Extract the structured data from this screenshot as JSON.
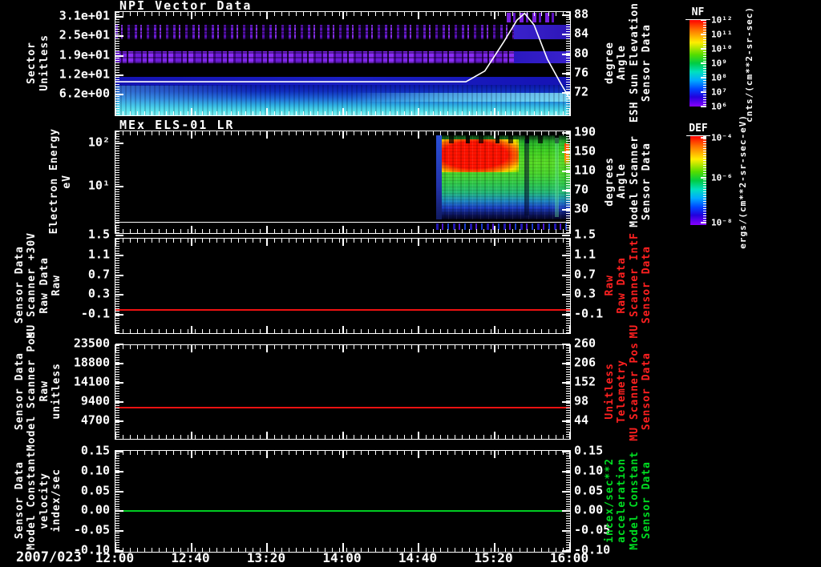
{
  "figure": {
    "bg": "#000000",
    "date_label": "2007/023",
    "x_ticks": [
      "12:00",
      "12:40",
      "13:20",
      "14:00",
      "14:40",
      "15:20",
      "16:00"
    ],
    "panels": [
      {
        "id": "npi",
        "title": "NPI Vector Data",
        "left_label_lines": [
          "Sector",
          "Unitless"
        ],
        "left_ticks": [
          "3.1e+01",
          "2.5e+01",
          "1.9e+01",
          "1.2e+01",
          "6.2e+00"
        ],
        "right_ticks": [
          "88",
          "84",
          "80",
          "76",
          "72"
        ],
        "right_label_lines": [
          "Sensor Data",
          "ESH Sun Elevation",
          "Angle",
          "degree"
        ],
        "right_label_color": "#ffffff"
      },
      {
        "id": "els",
        "title": "MEx ELS-01 LR",
        "left_label_lines": [
          "Electron Energy",
          "eV"
        ],
        "left_ticks": [
          "10²",
          "10¹"
        ],
        "right_ticks": [
          "190",
          "150",
          "110",
          "70",
          "30"
        ],
        "right_label_lines": [
          "Sensor Data",
          "Model Scanner",
          "Angle",
          "degrees"
        ],
        "right_label_color": "#ffffff"
      },
      {
        "id": "mu30v",
        "title": "",
        "left_label_lines": [
          "Sensor Data",
          "MU Scanner +30V",
          "Raw Data",
          "Raw"
        ],
        "left_ticks": [
          "1.5",
          "1.1",
          "0.7",
          "0.3",
          "-0.1"
        ],
        "right_ticks": [
          "1.5",
          "1.1",
          "0.7",
          "0.3",
          "-0.1"
        ],
        "right_label_lines": [
          "Sensor Data",
          "MU Scanner IntF",
          "Raw Data",
          "Raw"
        ],
        "right_label_color": "#ff2020",
        "line_color": "#ee1111"
      },
      {
        "id": "scanpos",
        "title": "",
        "left_label_lines": [
          "Sensor Data",
          "Model Scanner Pos",
          "Raw",
          "unitless"
        ],
        "left_ticks": [
          "23500",
          "18800",
          "14100",
          "9400",
          "4700"
        ],
        "right_ticks": [
          "260",
          "206",
          "152",
          "98",
          "44"
        ],
        "right_label_lines": [
          "Sensor Data",
          "MU Scanner Pos",
          "Telemetry",
          "Unitless"
        ],
        "right_label_color": "#ff2020",
        "line_color": "#ee1111"
      },
      {
        "id": "velocity",
        "title": "",
        "left_label_lines": [
          "Sensor Data",
          "Model Constant",
          "velocity",
          "index/sec"
        ],
        "left_ticks": [
          "0.15",
          "0.10",
          "0.05",
          "0.00",
          "-0.05",
          "-0.10"
        ],
        "right_ticks": [
          "0.15",
          "0.10",
          "0.05",
          "0.00",
          "-0.05",
          "-0.10"
        ],
        "right_label_lines": [
          "Sensor Data",
          "Model Constant",
          "acceleration",
          "incex/sec**2"
        ],
        "right_label_color": "#00dd22",
        "line_color": "#00cc22"
      }
    ],
    "colorbars": [
      {
        "name": "NF",
        "unit": "cnts/(cm**2-sr-sec)",
        "tick_labels": [
          "10¹²",
          "10¹¹",
          "10¹⁰",
          "10⁹",
          "10⁸",
          "10⁷",
          "10⁶"
        ]
      },
      {
        "name": "DEF",
        "unit": "ergs/(cm**2-sr-sec-eV)",
        "tick_labels": [
          "10⁻⁴",
          "10⁻⁶",
          "10⁻⁸"
        ]
      }
    ]
  },
  "chart_data": [
    {
      "type": "heatmap",
      "title": "NPI Vector Data",
      "ylabel": "Sector Unitless",
      "y_ticks": [
        "3.1e+01",
        "2.5e+01",
        "1.9e+01",
        "1.2e+01",
        "6.2e+00"
      ],
      "x_ticks": [
        "12:00",
        "12:40",
        "13:20",
        "14:00",
        "14:40",
        "15:20",
        "16:00"
      ],
      "x_range": [
        "2007/023 12:00",
        "2007/023 16:00"
      ],
      "colorbar": {
        "label": "NF",
        "unit": "cnts/(cm**2-sr-sec)",
        "tick_exponents": [
          12,
          11,
          10,
          9,
          8,
          7,
          6
        ]
      },
      "features": [
        "sparse speckled purple band around sectors 24-28 across full time range",
        "denser speckled purple band around sectors 17-19 across full time range",
        "solid dark-blue band around sectors 10-11",
        "blue-to-cyan continuum for sectors below ~9, brightest cyan at lowest sectors",
        "bands become solid blue-purple after ~15:20"
      ],
      "overlay_line": {
        "name": "Sensor Data ESH Sun Elevation Angle (degree)",
        "color": "#ffffff",
        "axis_ticks": [
          88,
          84,
          80,
          76,
          72
        ],
        "points_time_value": [
          [
            "12:00",
            74.3
          ],
          [
            "15:05",
            74.3
          ],
          [
            "15:15",
            76.5
          ],
          [
            "15:25",
            82.5
          ],
          [
            "15:32",
            87
          ],
          [
            "15:36",
            88.4
          ],
          [
            "15:41",
            86
          ],
          [
            "15:48",
            79
          ],
          [
            "15:55",
            74
          ],
          [
            "16:00",
            70.7
          ]
        ]
      }
    },
    {
      "type": "heatmap",
      "title": "MEx ELS-01 LR",
      "ylabel": "Electron Energy (eV)",
      "y_scale": "log",
      "y_ticks": [
        "10²",
        "10¹"
      ],
      "right_axis": {
        "label": "Sensor Data Model Scanner Angle (degrees)",
        "ticks": [
          190,
          150,
          110,
          70,
          30
        ]
      },
      "colorbar": {
        "label": "DEF",
        "unit": "ergs/(cm**2-sr-sec-eV)",
        "tick_exponents": [
          -4,
          -6,
          -8
        ]
      },
      "features": [
        "no counts (black) from 12:00 until about 14:50",
        "intense electron flux from ~14:50 to 16:00 spanning ~3-200 eV",
        "red peak flux ~20-120 eV between ~15:00 and ~15:25 fading to green/yellow",
        "blue and dark speckles at lowest energies",
        "flat white trace near panel bottom across entire time range"
      ]
    },
    {
      "type": "line",
      "series": [
        {
          "name": "Sensor Data MU Scanner +30V Raw Data Raw",
          "color": "#ee1111",
          "constant_value": 0.0
        }
      ],
      "y_ticks": [
        1.5,
        1.1,
        0.7,
        0.3,
        -0.1
      ],
      "right_axis": {
        "label": "Sensor Data MU Scanner IntF Raw Data Raw",
        "ticks": [
          1.5,
          1.1,
          0.7,
          0.3,
          -0.1
        ]
      },
      "x_range": [
        "12:00",
        "16:00"
      ]
    },
    {
      "type": "line",
      "series": [
        {
          "name": "Sensor Data Model Scanner Pos Raw (unitless)",
          "color": "#ee1111",
          "constant_value": 8000
        }
      ],
      "y_ticks": [
        23500,
        18800,
        14100,
        9400,
        4700
      ],
      "right_axis": {
        "label": "Sensor Data MU Scanner Pos Telemetry Unitless",
        "ticks": [
          260,
          206,
          152,
          98,
          44
        ],
        "constant_value": 80
      },
      "x_range": [
        "12:00",
        "16:00"
      ]
    },
    {
      "type": "line",
      "series": [
        {
          "name": "Sensor Data Model Constant velocity (index/sec)",
          "color": "#00cc22",
          "constant_value": 0.0
        }
      ],
      "y_ticks": [
        0.15,
        0.1,
        0.05,
        0.0,
        -0.05,
        -0.1
      ],
      "right_axis": {
        "label": "Sensor Data Model Constant acceleration (incex/sec**2)",
        "ticks": [
          0.15,
          0.1,
          0.05,
          0.0,
          -0.05,
          -0.1
        ]
      },
      "x_range": [
        "12:00",
        "16:00"
      ]
    }
  ]
}
